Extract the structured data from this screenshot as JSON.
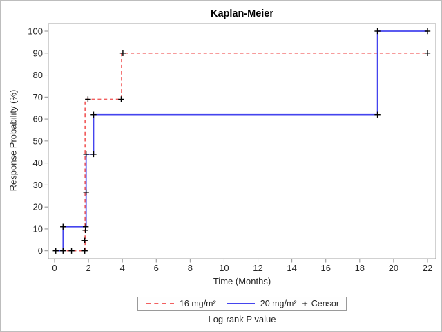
{
  "window": {
    "background": "#ffffff",
    "border_color": "#bdbdbd"
  },
  "chart_data": {
    "type": "line",
    "subtype": "kaplan-meier-step-curves",
    "title": "Kaplan-Meier",
    "xlabel": "Time (Months)",
    "ylabel": "Response Probability (%)",
    "footer": "Log-rank P value",
    "censor_label": "Censor",
    "censor_symbol": "+",
    "xlim": [
      0,
      22
    ],
    "ylim": [
      0,
      100
    ],
    "x_ticks": [
      0,
      2,
      4,
      6,
      8,
      10,
      12,
      14,
      16,
      18,
      20,
      22
    ],
    "y_ticks": [
      0,
      10,
      20,
      30,
      40,
      50,
      60,
      70,
      80,
      90,
      100
    ],
    "grid": false,
    "legend_position": "bottom",
    "frame_color": "#a3a3a3",
    "tick_color": "#8e8e8e",
    "censor_color": "#000000",
    "series": [
      {
        "name": "16 mg/m²",
        "color": "#f25f5f",
        "style": "dashed",
        "steps": [
          [
            0,
            0
          ],
          [
            1.8,
            0
          ],
          [
            1.8,
            69
          ],
          [
            3.95,
            69
          ],
          [
            3.95,
            90
          ],
          [
            22,
            90
          ]
        ]
      },
      {
        "name": "20 mg/m²",
        "color": "#4444ee",
        "style": "solid",
        "steps": [
          [
            0,
            0
          ],
          [
            0.5,
            0
          ],
          [
            0.5,
            11
          ],
          [
            1.86,
            11
          ],
          [
            1.86,
            44
          ],
          [
            2.3,
            44
          ],
          [
            2.3,
            62
          ],
          [
            19.05,
            62
          ],
          [
            19.05,
            100
          ],
          [
            22,
            100
          ]
        ]
      }
    ],
    "censor_marks": [
      [
        0.07,
        0
      ],
      [
        0.5,
        0
      ],
      [
        1.0,
        0
      ],
      [
        1.78,
        0
      ],
      [
        1.78,
        4.7
      ],
      [
        0.5,
        11
      ],
      [
        1.82,
        9.4
      ],
      [
        1.84,
        11
      ],
      [
        1.86,
        26.7
      ],
      [
        1.86,
        44
      ],
      [
        2.3,
        44
      ],
      [
        2.3,
        62
      ],
      [
        19.05,
        62
      ],
      [
        1.97,
        69
      ],
      [
        3.93,
        69
      ],
      [
        4.03,
        90
      ],
      [
        22,
        90
      ],
      [
        19.05,
        100
      ],
      [
        22,
        100
      ]
    ]
  }
}
